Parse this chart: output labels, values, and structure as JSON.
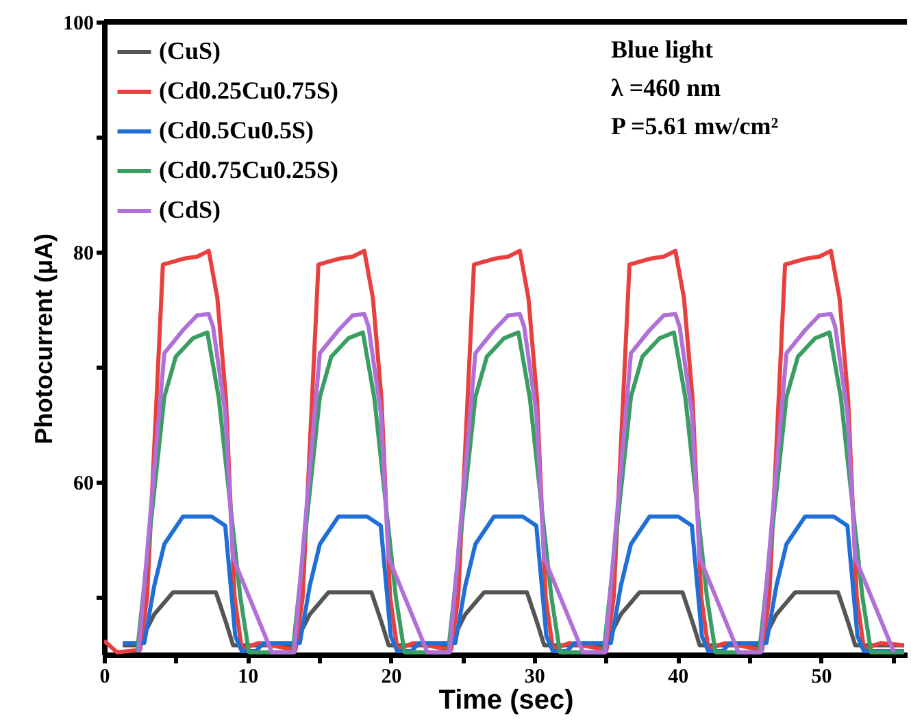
{
  "chart_data": {
    "type": "line",
    "xlabel": "Time (sec)",
    "ylabel": "Photocurrent (μA)",
    "annotations": [
      "Blue light",
      "λ =460 nm",
      "P =5.61 mw/cm²"
    ],
    "xlim": [
      0,
      56
    ],
    "ylim": [
      45,
      100
    ],
    "xticks": [
      0,
      {
        "value": 5,
        "label": null
      },
      10,
      {
        "value": 15,
        "label": null
      },
      20,
      {
        "value": 25,
        "label": null
      },
      30,
      {
        "value": 35,
        "label": null
      },
      40,
      {
        "value": 45,
        "label": null
      },
      50,
      {
        "value": 55,
        "label": null
      }
    ],
    "yticks": [
      {
        "value": 50,
        "label": null
      },
      60,
      {
        "value": 70,
        "label": null
      },
      80,
      {
        "value": 90,
        "label": null
      },
      100
    ],
    "grid": false,
    "legend": "top left",
    "marker": "none",
    "line_style": "solid",
    "series": [
      {
        "name": "(CuS)",
        "color": "#555555",
        "x": [
          1.3,
          2.4,
          3.5,
          4.8,
          7.8,
          8.5,
          9.0,
          13.25,
          14.35,
          15.65,
          18.65,
          19.35,
          19.85,
          24.1,
          25.2,
          26.5,
          29.5,
          30.2,
          30.7,
          34.95,
          36.05,
          37.35,
          40.35,
          41.05,
          41.55,
          45.8,
          46.9,
          48.2,
          51.2,
          51.9,
          52.4,
          55.8
        ],
        "values": [
          45.8,
          45.8,
          48.5,
          50.4,
          50.4,
          47.8,
          45.8,
          45.8,
          48.5,
          50.4,
          50.4,
          47.8,
          45.8,
          45.8,
          48.5,
          50.4,
          50.4,
          47.8,
          45.8,
          45.8,
          48.5,
          50.4,
          50.4,
          47.8,
          45.8,
          45.8,
          48.5,
          50.4,
          50.4,
          47.8,
          45.8,
          45.8
        ]
      },
      {
        "name": "(Cd0.25Cu0.75S)",
        "color": "#e8403f",
        "x": [
          0,
          0.9,
          2.5,
          3.0,
          4.1,
          5.5,
          6.5,
          7.3,
          7.9,
          8.5,
          9.1,
          9.6,
          10.8,
          13.35,
          13.85,
          14.95,
          16.35,
          17.35,
          18.15,
          18.75,
          19.35,
          19.95,
          20.45,
          21.65,
          24.2,
          24.7,
          25.8,
          27.2,
          28.2,
          29.0,
          29.6,
          30.2,
          30.8,
          31.3,
          32.5,
          35.05,
          35.55,
          36.65,
          38.05,
          39.05,
          39.85,
          40.45,
          41.05,
          41.65,
          42.15,
          43.35,
          45.9,
          46.4,
          47.5,
          48.9,
          49.9,
          50.7,
          51.3,
          51.9,
          52.5,
          53.0,
          54.2,
          55.8
        ],
        "values": [
          46.2,
          45.2,
          45.4,
          50.0,
          78.9,
          79.4,
          79.6,
          80.1,
          76.0,
          67.2,
          50.0,
          45.5,
          46.0,
          45.4,
          50.0,
          78.9,
          79.4,
          79.6,
          80.1,
          76.0,
          67.2,
          50.0,
          45.5,
          46.0,
          45.4,
          50.0,
          78.9,
          79.4,
          79.6,
          80.1,
          76.0,
          67.2,
          50.0,
          45.5,
          46.0,
          45.4,
          50.0,
          78.9,
          79.4,
          79.6,
          80.1,
          76.0,
          67.2,
          50.0,
          45.5,
          46.0,
          45.4,
          50.0,
          78.9,
          79.4,
          79.6,
          80.1,
          76.0,
          67.2,
          50.0,
          45.5,
          46.0,
          45.8
        ]
      },
      {
        "name": "(Cd0.5Cu0.5S)",
        "color": "#1f6fd6",
        "x": [
          1.3,
          2.8,
          3.5,
          4.2,
          5.5,
          7.5,
          8.45,
          9.15,
          9.6,
          10.6,
          11.1,
          13.65,
          14.35,
          15.05,
          16.35,
          18.35,
          19.3,
          20.0,
          20.45,
          21.45,
          21.95,
          24.5,
          25.2,
          25.9,
          27.2,
          29.2,
          30.15,
          30.85,
          31.3,
          32.3,
          32.8,
          35.35,
          36.05,
          36.75,
          38.05,
          40.05,
          41.0,
          41.7,
          42.15,
          43.15,
          43.65,
          46.2,
          46.9,
          47.6,
          48.9,
          50.9,
          51.85,
          52.55,
          53.0,
          54.0,
          55.8
        ],
        "values": [
          46.0,
          46.0,
          51.0,
          54.6,
          57.0,
          57.0,
          56.2,
          46.6,
          45.3,
          45.3,
          46.0,
          46.0,
          51.0,
          54.6,
          57.0,
          57.0,
          56.2,
          46.6,
          45.3,
          45.3,
          46.0,
          46.0,
          51.0,
          54.6,
          57.0,
          57.0,
          56.2,
          46.6,
          45.3,
          45.3,
          46.0,
          46.0,
          51.0,
          54.6,
          57.0,
          57.0,
          56.2,
          46.6,
          45.3,
          45.3,
          46.0,
          46.0,
          51.0,
          54.6,
          57.0,
          57.0,
          56.2,
          46.6,
          45.3,
          45.3,
          45.3
        ]
      },
      {
        "name": "(Cd0.75Cu0.25S)",
        "color": "#3a9e63",
        "x": [
          2.3,
          4.2,
          5.0,
          6.2,
          7.2,
          8.0,
          9.5,
          10.1,
          13.15,
          15.05,
          15.85,
          17.05,
          18.05,
          18.85,
          20.35,
          20.95,
          24.0,
          25.9,
          26.7,
          27.9,
          28.9,
          29.7,
          31.2,
          31.8,
          34.85,
          36.75,
          37.55,
          38.75,
          39.75,
          40.55,
          42.05,
          42.65,
          45.7,
          47.6,
          48.4,
          49.6,
          50.6,
          51.4,
          52.9,
          53.5,
          55.8
        ],
        "values": [
          45.2,
          67.4,
          70.9,
          72.5,
          73.0,
          67.3,
          50.0,
          45.2,
          45.2,
          67.4,
          70.9,
          72.5,
          73.0,
          67.3,
          50.0,
          45.2,
          45.2,
          67.4,
          70.9,
          72.5,
          73.0,
          67.3,
          50.0,
          45.2,
          45.2,
          67.4,
          70.9,
          72.5,
          73.0,
          67.3,
          50.0,
          45.2,
          45.2,
          67.4,
          70.9,
          72.5,
          73.0,
          67.3,
          50.0,
          45.2,
          45.2
        ]
      },
      {
        "name": "(CdS)",
        "color": "#b070d8",
        "x": [
          2.4,
          4.2,
          5.5,
          6.5,
          7.3,
          7.6,
          8.45,
          9.0,
          11.7,
          13.25,
          15.05,
          16.35,
          17.35,
          18.15,
          18.45,
          19.3,
          19.85,
          22.55,
          24.1,
          25.9,
          27.2,
          28.2,
          29.0,
          29.3,
          30.15,
          30.7,
          33.4,
          34.95,
          36.75,
          38.05,
          39.05,
          39.85,
          40.15,
          41.0,
          41.55,
          44.25,
          45.8,
          47.6,
          48.9,
          49.9,
          50.7,
          51.0,
          51.85,
          52.4,
          55.1
        ],
        "values": [
          45.2,
          71.2,
          73.2,
          74.5,
          74.6,
          73.5,
          66.0,
          53.4,
          45.2,
          45.2,
          71.2,
          73.2,
          74.5,
          74.6,
          73.5,
          66.0,
          53.4,
          45.2,
          45.2,
          71.2,
          73.2,
          74.5,
          74.6,
          73.5,
          66.0,
          53.4,
          45.2,
          45.2,
          71.2,
          73.2,
          74.5,
          74.6,
          73.5,
          66.0,
          53.4,
          45.2,
          45.2,
          71.2,
          73.2,
          74.5,
          74.6,
          73.5,
          66.0,
          53.4,
          45.2
        ]
      }
    ]
  }
}
